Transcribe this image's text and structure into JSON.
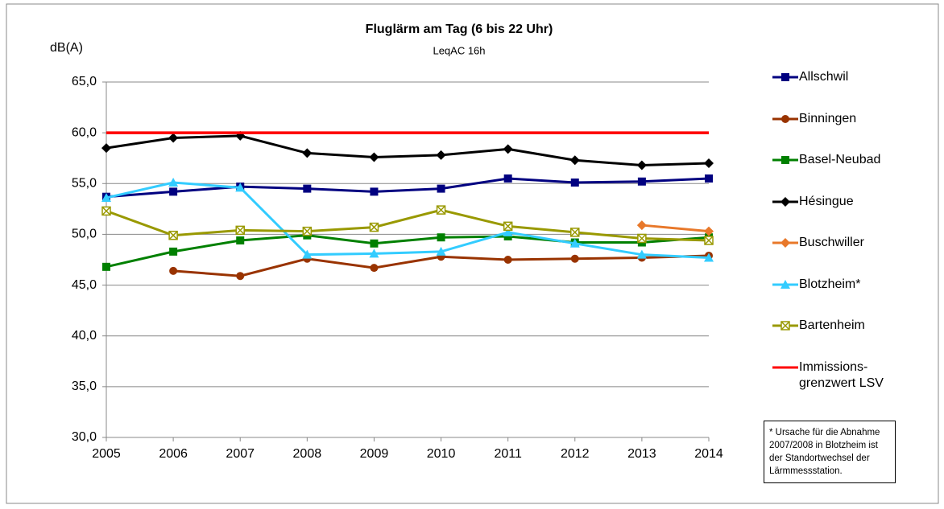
{
  "chart_data": {
    "type": "line",
    "title": "Fluglärm am Tag (6 bis 22 Uhr)",
    "subtitle": "LeqAC 16h",
    "y_label": "dB(A)",
    "categories": [
      "2005",
      "2006",
      "2007",
      "2008",
      "2009",
      "2010",
      "2011",
      "2012",
      "2013",
      "2014"
    ],
    "ylim": [
      30,
      65
    ],
    "yticks": [
      {
        "value": 30,
        "label": "30,0"
      },
      {
        "value": 35,
        "label": "35,0"
      },
      {
        "value": 40,
        "label": "40,0"
      },
      {
        "value": 45,
        "label": "45,0"
      },
      {
        "value": 50,
        "label": "50,0"
      },
      {
        "value": 55,
        "label": "55,0"
      },
      {
        "value": 60,
        "label": "60,0"
      },
      {
        "value": 65,
        "label": "65,0"
      }
    ],
    "grid": true,
    "series": [
      {
        "name": "Allschwil",
        "color": "#000080",
        "marker": "square",
        "values": [
          53.7,
          54.2,
          54.7,
          54.5,
          54.2,
          54.5,
          55.5,
          55.1,
          55.2,
          55.5
        ]
      },
      {
        "name": "Binningen",
        "color": "#993300",
        "marker": "circle",
        "values": [
          null,
          46.4,
          45.9,
          47.6,
          46.7,
          47.8,
          47.5,
          47.6,
          47.7,
          47.9
        ]
      },
      {
        "name": "Basel-Neubad",
        "color": "#008000",
        "marker": "square",
        "values": [
          46.8,
          48.3,
          49.4,
          49.9,
          49.1,
          49.7,
          49.8,
          49.2,
          49.2,
          49.7
        ]
      },
      {
        "name": "Hésingue",
        "color": "#000000",
        "marker": "diamond",
        "values": [
          58.5,
          59.5,
          59.7,
          58.0,
          57.6,
          57.8,
          58.4,
          57.3,
          56.8,
          57.0
        ]
      },
      {
        "name": "Buschwiller",
        "color": "#e8782a",
        "marker": "diamond",
        "values": [
          null,
          null,
          null,
          null,
          null,
          null,
          null,
          null,
          50.9,
          50.3
        ]
      },
      {
        "name": "Blotzheim*",
        "color": "#33ccff",
        "marker": "triangle",
        "values": [
          53.6,
          55.1,
          54.6,
          48.0,
          48.1,
          48.3,
          50.2,
          49.1,
          48.0,
          47.7
        ]
      },
      {
        "name": "Bartenheim",
        "color": "#999900",
        "marker": "star",
        "values": [
          52.3,
          49.9,
          50.4,
          50.3,
          50.7,
          52.4,
          50.8,
          50.2,
          49.6,
          49.4
        ]
      },
      {
        "name": "Immissions-grenzwert LSV",
        "color": "#ff0000",
        "values": [
          60,
          60,
          60,
          60,
          60,
          60,
          60,
          60,
          60,
          60
        ]
      }
    ],
    "footnote": "* Ursache für die Abnahme 2007/2008 in Blotzheim ist der Standortwechsel der Lärmmessstation."
  }
}
